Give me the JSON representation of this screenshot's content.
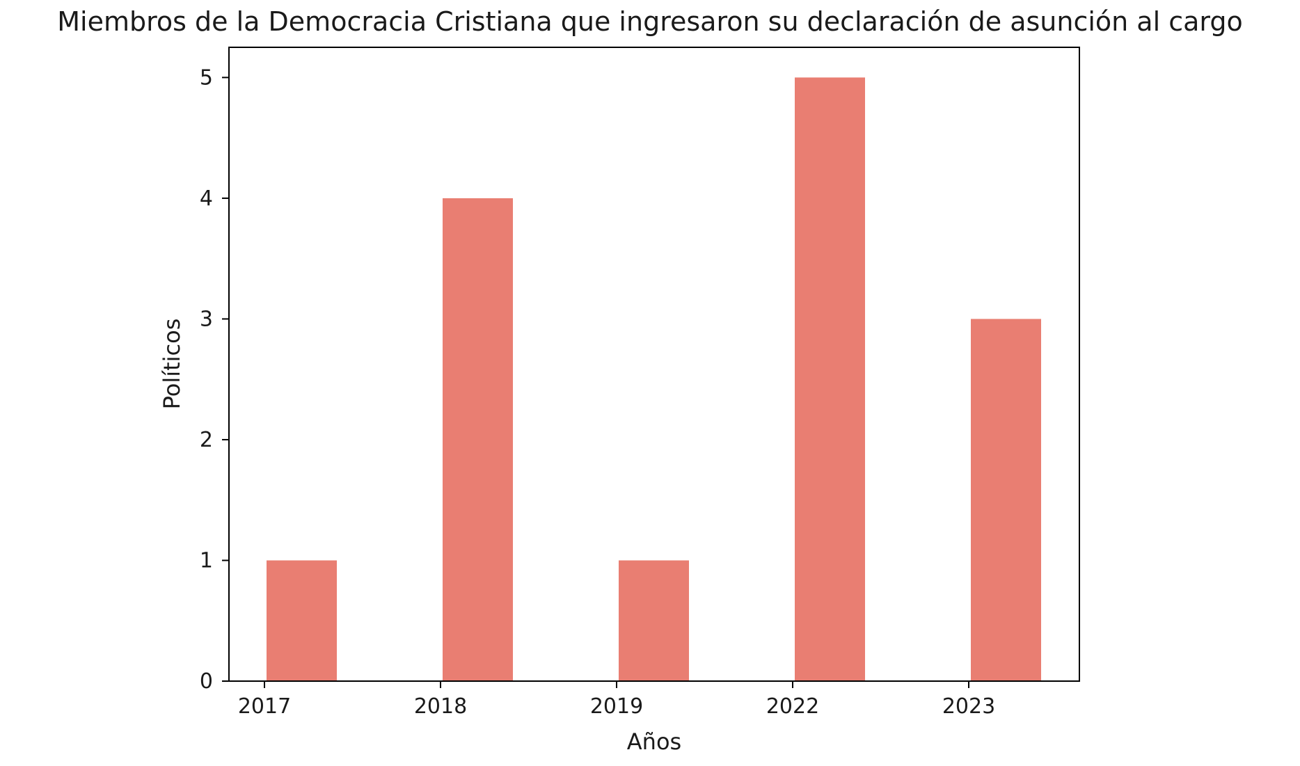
{
  "chart_data": {
    "type": "bar",
    "title": "Miembros de la Democracia Cristiana que ingresaron su declaración de asunción al cargo",
    "xlabel": "Años",
    "ylabel": "Políticos",
    "categories": [
      "2017",
      "2018",
      "2019",
      "2022",
      "2023"
    ],
    "values": [
      1,
      4,
      1,
      5,
      3
    ],
    "ylim": [
      0,
      5.25
    ],
    "yticks": [
      0,
      1,
      2,
      3,
      4,
      5
    ],
    "bar_color": "#e97e72",
    "grid": false,
    "legend": "none"
  }
}
